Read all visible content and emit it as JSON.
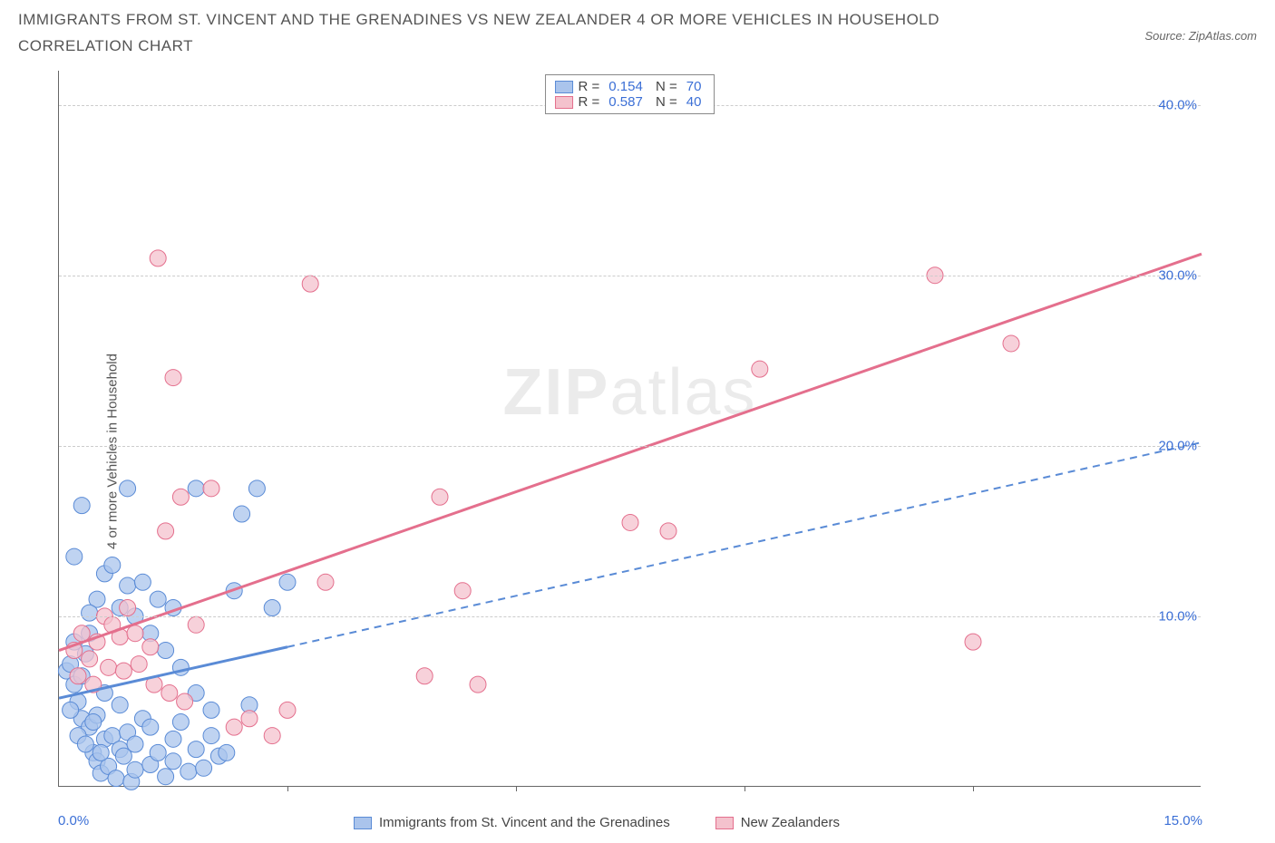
{
  "header": {
    "title": "IMMIGRANTS FROM ST. VINCENT AND THE GRENADINES VS NEW ZEALANDER 4 OR MORE VEHICLES IN HOUSEHOLD CORRELATION CHART",
    "source": "Source: ZipAtlas.com"
  },
  "watermark": {
    "bold": "ZIP",
    "rest": "atlas"
  },
  "chart": {
    "type": "scatter",
    "ylabel": "4 or more Vehicles in Household",
    "xlim": [
      0,
      15
    ],
    "ylim": [
      0,
      42
    ],
    "x_tick_step": 3,
    "y_grid": [
      10,
      20,
      30,
      40
    ],
    "y_right_labels": [
      "10.0%",
      "20.0%",
      "30.0%",
      "40.0%"
    ],
    "x_left_label": "0.0%",
    "x_right_label": "15.0%",
    "background_color": "#ffffff",
    "grid_color": "#cccccc",
    "series": [
      {
        "key": "svg_immigrants",
        "label": "Immigrants from St. Vincent and the Grenadines",
        "color_fill": "#aac4ec",
        "color_stroke": "#5a8bd6",
        "marker_radius": 9,
        "R": "0.154",
        "N": "70",
        "trend": {
          "y_intercept": 5.2,
          "slope": 1.0,
          "solid_until_x": 3.0,
          "stroke_width": 2
        },
        "points": [
          [
            0.1,
            6.8
          ],
          [
            0.15,
            7.2
          ],
          [
            0.2,
            6.0
          ],
          [
            0.2,
            8.5
          ],
          [
            0.25,
            5.0
          ],
          [
            0.3,
            6.5
          ],
          [
            0.3,
            4.0
          ],
          [
            0.35,
            7.8
          ],
          [
            0.4,
            3.5
          ],
          [
            0.4,
            9.0
          ],
          [
            0.45,
            2.0
          ],
          [
            0.5,
            1.5
          ],
          [
            0.5,
            4.2
          ],
          [
            0.55,
            0.8
          ],
          [
            0.6,
            2.8
          ],
          [
            0.6,
            5.5
          ],
          [
            0.65,
            1.2
          ],
          [
            0.7,
            3.0
          ],
          [
            0.75,
            0.5
          ],
          [
            0.8,
            2.2
          ],
          [
            0.8,
            4.8
          ],
          [
            0.85,
            1.8
          ],
          [
            0.9,
            3.2
          ],
          [
            0.95,
            0.3
          ],
          [
            1.0,
            2.5
          ],
          [
            1.0,
            1.0
          ],
          [
            1.1,
            4.0
          ],
          [
            1.2,
            1.3
          ],
          [
            1.2,
            3.5
          ],
          [
            1.3,
            2.0
          ],
          [
            1.4,
            0.6
          ],
          [
            1.5,
            2.8
          ],
          [
            1.5,
            1.5
          ],
          [
            1.6,
            3.8
          ],
          [
            1.7,
            0.9
          ],
          [
            1.8,
            2.2
          ],
          [
            1.9,
            1.1
          ],
          [
            2.0,
            3.0
          ],
          [
            2.1,
            1.8
          ],
          [
            2.3,
            11.5
          ],
          [
            0.3,
            16.5
          ],
          [
            0.2,
            13.5
          ],
          [
            0.5,
            11.0
          ],
          [
            0.6,
            12.5
          ],
          [
            0.8,
            10.5
          ],
          [
            0.9,
            11.8
          ],
          [
            1.0,
            10.0
          ],
          [
            1.1,
            12.0
          ],
          [
            1.3,
            11.0
          ],
          [
            1.5,
            10.5
          ],
          [
            0.4,
            10.2
          ],
          [
            0.7,
            13.0
          ],
          [
            1.2,
            9.0
          ],
          [
            1.4,
            8.0
          ],
          [
            1.6,
            7.0
          ],
          [
            1.8,
            5.5
          ],
          [
            2.0,
            4.5
          ],
          [
            2.2,
            2.0
          ],
          [
            2.5,
            4.8
          ],
          [
            2.6,
            17.5
          ],
          [
            2.8,
            10.5
          ],
          [
            3.0,
            12.0
          ],
          [
            2.4,
            16.0
          ],
          [
            0.9,
            17.5
          ],
          [
            1.8,
            17.5
          ],
          [
            0.15,
            4.5
          ],
          [
            0.25,
            3.0
          ],
          [
            0.35,
            2.5
          ],
          [
            0.45,
            3.8
          ],
          [
            0.55,
            2.0
          ]
        ]
      },
      {
        "key": "nz",
        "label": "New Zealanders",
        "color_fill": "#f4c2cd",
        "color_stroke": "#e46f8d",
        "marker_radius": 9,
        "R": "0.587",
        "N": "40",
        "trend": {
          "y_intercept": 8.0,
          "slope": 1.55,
          "solid_until_x": 15.0,
          "stroke_width": 2
        },
        "points": [
          [
            0.2,
            8.0
          ],
          [
            0.3,
            9.0
          ],
          [
            0.4,
            7.5
          ],
          [
            0.5,
            8.5
          ],
          [
            0.6,
            10.0
          ],
          [
            0.7,
            9.5
          ],
          [
            0.8,
            8.8
          ],
          [
            0.9,
            10.5
          ],
          [
            1.0,
            9.0
          ],
          [
            1.2,
            8.2
          ],
          [
            1.4,
            15.0
          ],
          [
            1.6,
            17.0
          ],
          [
            1.8,
            9.5
          ],
          [
            2.0,
            17.5
          ],
          [
            2.3,
            3.5
          ],
          [
            2.5,
            4.0
          ],
          [
            2.8,
            3.0
          ],
          [
            3.0,
            4.5
          ],
          [
            1.3,
            31.0
          ],
          [
            1.5,
            24.0
          ],
          [
            3.3,
            29.5
          ],
          [
            3.5,
            12.0
          ],
          [
            4.8,
            6.5
          ],
          [
            5.0,
            17.0
          ],
          [
            5.3,
            11.5
          ],
          [
            5.5,
            6.0
          ],
          [
            7.5,
            15.5
          ],
          [
            8.0,
            15.0
          ],
          [
            9.2,
            24.5
          ],
          [
            11.5,
            30.0
          ],
          [
            12.5,
            26.0
          ],
          [
            12.0,
            8.5
          ],
          [
            0.25,
            6.5
          ],
          [
            0.45,
            6.0
          ],
          [
            0.65,
            7.0
          ],
          [
            0.85,
            6.8
          ],
          [
            1.05,
            7.2
          ],
          [
            1.25,
            6.0
          ],
          [
            1.45,
            5.5
          ],
          [
            1.65,
            5.0
          ]
        ]
      }
    ]
  }
}
